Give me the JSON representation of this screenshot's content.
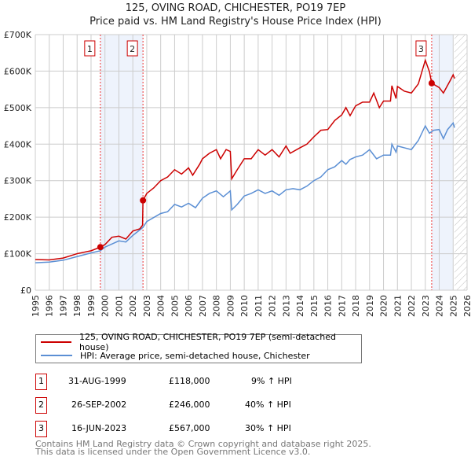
{
  "title": "125, OVING ROAD, CHICHESTER, PO19 7EP",
  "subtitle": "Price paid vs. HM Land Registry's House Price Index (HPI)",
  "chart_data": {
    "type": "line",
    "title": "125, OVING ROAD, CHICHESTER, PO19 7EP",
    "subtitle": "Price paid vs. HM Land Registry's House Price Index (HPI)",
    "xlim": [
      1995,
      2026
    ],
    "ylim": [
      0,
      700000
    ],
    "x_ticks": [
      "1995",
      "1996",
      "1997",
      "1998",
      "1999",
      "2000",
      "2001",
      "2002",
      "2003",
      "2004",
      "2005",
      "2006",
      "2007",
      "2008",
      "2009",
      "2010",
      "2011",
      "2012",
      "2013",
      "2014",
      "2015",
      "2016",
      "2017",
      "2018",
      "2019",
      "2020",
      "2021",
      "2022",
      "2023",
      "2024",
      "2025",
      "2026"
    ],
    "y_ticks": [
      {
        "v": 0,
        "label": "£0"
      },
      {
        "v": 100000,
        "label": "£100K"
      },
      {
        "v": 200000,
        "label": "£200K"
      },
      {
        "v": 300000,
        "label": "£300K"
      },
      {
        "v": 400000,
        "label": "£400K"
      },
      {
        "v": 500000,
        "label": "£500K"
      },
      {
        "v": 600000,
        "label": "£600K"
      },
      {
        "v": 700000,
        "label": "£700K"
      }
    ],
    "grid": true,
    "shaded_ranges": [
      [
        1999.67,
        2002.73
      ],
      [
        2023.46,
        2025.0
      ]
    ],
    "forecast_hatch_from": 2025.1,
    "series": [
      {
        "name": "125, OVING ROAD, CHICHESTER, PO19 7EP (semi-detached house)",
        "color": "#cc0000",
        "x": [
          1995,
          1996,
          1997,
          1998,
          1999,
          1999.67,
          2000,
          2000.5,
          2001,
          2001.5,
          2002,
          2002.5,
          2002.7,
          2002.73,
          2003,
          2003.5,
          2004,
          2004.5,
          2005,
          2005.5,
          2006,
          2006.3,
          2006.8,
          2007,
          2007.5,
          2008,
          2008.3,
          2008.7,
          2009,
          2009.1,
          2009.5,
          2010,
          2010.5,
          2011,
          2011.5,
          2012,
          2012.5,
          2013,
          2013.3,
          2014,
          2014.5,
          2015,
          2015.5,
          2016,
          2016.5,
          2017,
          2017.3,
          2017.6,
          2018,
          2018.5,
          2019,
          2019.3,
          2019.7,
          2020,
          2020.5,
          2020.6,
          2020.9,
          2021,
          2021.5,
          2022,
          2022.5,
          2023,
          2023.3,
          2023.46,
          2024,
          2024.3,
          2024.8,
          2025,
          2025.1
        ],
        "y": [
          84000,
          83000,
          88000,
          100000,
          108000,
          118000,
          125000,
          145000,
          148000,
          140000,
          162000,
          168000,
          178000,
          246000,
          265000,
          280000,
          300000,
          310000,
          330000,
          318000,
          335000,
          315000,
          345000,
          360000,
          375000,
          385000,
          360000,
          385000,
          380000,
          305000,
          330000,
          360000,
          360000,
          385000,
          370000,
          385000,
          365000,
          395000,
          375000,
          390000,
          400000,
          420000,
          438000,
          440000,
          465000,
          480000,
          500000,
          478000,
          505000,
          515000,
          515000,
          540000,
          500000,
          518000,
          518000,
          560000,
          525000,
          558000,
          545000,
          540000,
          565000,
          630000,
          598000,
          567000,
          555000,
          540000,
          575000,
          590000,
          580000
        ]
      },
      {
        "name": "HPI: Average price, semi-detached house, Chichester",
        "color": "#5b8fd4",
        "x": [
          1995,
          1996,
          1997,
          1998,
          1999,
          1999.67,
          2000,
          2001,
          2001.5,
          2002,
          2002.73,
          2003,
          2004,
          2004.5,
          2005,
          2005.5,
          2006,
          2006.5,
          2007,
          2007.5,
          2008,
          2008.5,
          2009,
          2009.1,
          2009.5,
          2010,
          2010.5,
          2011,
          2011.5,
          2012,
          2012.5,
          2013,
          2013.5,
          2014,
          2014.5,
          2015,
          2015.5,
          2016,
          2016.5,
          2017,
          2017.3,
          2017.6,
          2018,
          2018.5,
          2019,
          2019.2,
          2019.5,
          2020,
          2020.5,
          2020.6,
          2020.9,
          2021,
          2021.5,
          2022,
          2022.5,
          2023,
          2023.3,
          2023.6,
          2024,
          2024.3,
          2024.6,
          2025,
          2025.1
        ],
        "y": [
          75000,
          77000,
          82000,
          92000,
          102000,
          108000,
          118000,
          135000,
          132000,
          150000,
          172000,
          188000,
          210000,
          215000,
          235000,
          228000,
          238000,
          226000,
          252000,
          265000,
          272000,
          256000,
          272000,
          220000,
          235000,
          258000,
          265000,
          275000,
          265000,
          272000,
          260000,
          275000,
          278000,
          275000,
          285000,
          300000,
          310000,
          330000,
          338000,
          355000,
          345000,
          358000,
          365000,
          370000,
          385000,
          375000,
          360000,
          370000,
          370000,
          400000,
          378000,
          395000,
          390000,
          385000,
          410000,
          450000,
          430000,
          438000,
          440000,
          415000,
          440000,
          458000,
          445000
        ]
      }
    ],
    "sales": [
      {
        "n": "1",
        "x": 1999.67,
        "y": 118000,
        "date": "31-AUG-1999",
        "price": "£118,000",
        "hpi": "9% ↑ HPI"
      },
      {
        "n": "2",
        "x": 2002.73,
        "y": 246000,
        "date": "26-SEP-2002",
        "price": "£246,000",
        "hpi": "40% ↑ HPI"
      },
      {
        "n": "3",
        "x": 2023.46,
        "y": 567000,
        "date": "16-JUN-2023",
        "price": "£567,000",
        "hpi": "30% ↑ HPI"
      }
    ]
  },
  "footer": {
    "line1": "Contains HM Land Registry data © Crown copyright and database right 2025.",
    "line2": "This data is licensed under the Open Government Licence v3.0."
  }
}
